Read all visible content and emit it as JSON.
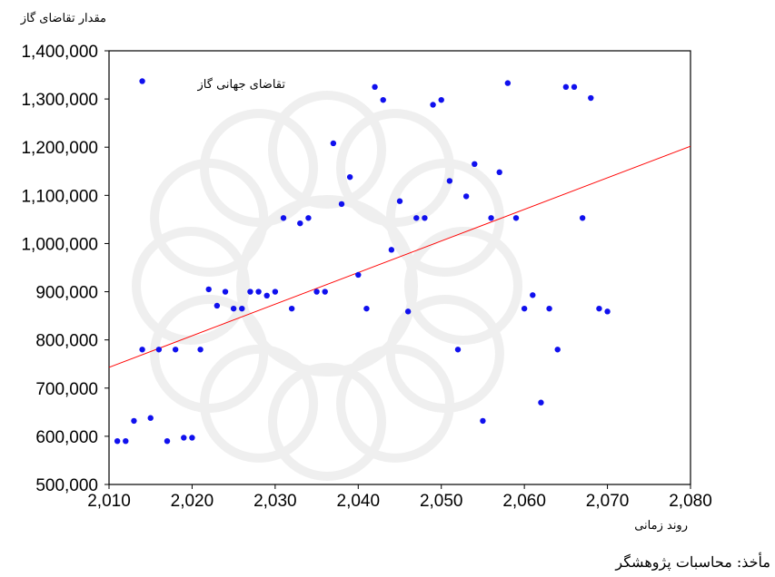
{
  "chart_data": {
    "type": "scatter",
    "ylabel": "مقدار تقاضای گاز",
    "xlabel": "روند زمانی",
    "legend": "تقاضای جهانی گاز",
    "legend_placement": "top-left",
    "xlim": [
      2010,
      2080
    ],
    "ylim": [
      500000,
      1400000
    ],
    "x_ticks": [
      "2,010",
      "2,020",
      "2,030",
      "2,040",
      "2,050",
      "2,060",
      "2,070",
      "2,080"
    ],
    "y_ticks": [
      "500,000",
      "600,000",
      "700,000",
      "800,000",
      "900,000",
      "1,000,000",
      "1,100,000",
      "1,200,000",
      "1,300,000",
      "1,400,000"
    ],
    "grid": false,
    "point_color": "#1010ee",
    "trend_color": "#ff0000",
    "trend_line": {
      "x": [
        2010,
        2080
      ],
      "y": [
        743000,
        1202000
      ]
    },
    "points": [
      [
        2011,
        590000
      ],
      [
        2012,
        590000
      ],
      [
        2013,
        632000
      ],
      [
        2014,
        1337000
      ],
      [
        2014,
        780000
      ],
      [
        2015,
        638000
      ],
      [
        2016,
        780000
      ],
      [
        2017,
        590000
      ],
      [
        2018,
        780000
      ],
      [
        2019,
        597000
      ],
      [
        2020,
        597000
      ],
      [
        2021,
        780000
      ],
      [
        2022,
        905000
      ],
      [
        2023,
        871000
      ],
      [
        2024,
        900000
      ],
      [
        2025,
        865000
      ],
      [
        2026,
        865000
      ],
      [
        2027,
        900000
      ],
      [
        2028,
        900000
      ],
      [
        2029,
        892000
      ],
      [
        2030,
        900000
      ],
      [
        2031,
        1053000
      ],
      [
        2032,
        865000
      ],
      [
        2033,
        1042000
      ],
      [
        2034,
        1053000
      ],
      [
        2035,
        900000
      ],
      [
        2036,
        900000
      ],
      [
        2037,
        1208000
      ],
      [
        2038,
        1082000
      ],
      [
        2039,
        1138000
      ],
      [
        2040,
        935000
      ],
      [
        2041,
        865000
      ],
      [
        2042,
        1325000
      ],
      [
        2043,
        1298000
      ],
      [
        2044,
        987000
      ],
      [
        2045,
        1088000
      ],
      [
        2046,
        859000
      ],
      [
        2047,
        1053000
      ],
      [
        2048,
        1053000
      ],
      [
        2049,
        1288000
      ],
      [
        2050,
        1298000
      ],
      [
        2051,
        1130000
      ],
      [
        2052,
        780000
      ],
      [
        2053,
        1098000
      ],
      [
        2054,
        1165000
      ],
      [
        2055,
        632000
      ],
      [
        2056,
        1053000
      ],
      [
        2057,
        1148000
      ],
      [
        2058,
        1333000
      ],
      [
        2059,
        1053000
      ],
      [
        2060,
        865000
      ],
      [
        2061,
        893000
      ],
      [
        2062,
        670000
      ],
      [
        2063,
        865000
      ],
      [
        2064,
        780000
      ],
      [
        2065,
        1325000
      ],
      [
        2066,
        1325000
      ],
      [
        2067,
        1053000
      ],
      [
        2068,
        1302000
      ],
      [
        2069,
        865000
      ],
      [
        2070,
        859000
      ]
    ]
  },
  "source_note": "مأخذ: محاسبات پژوهشگر"
}
